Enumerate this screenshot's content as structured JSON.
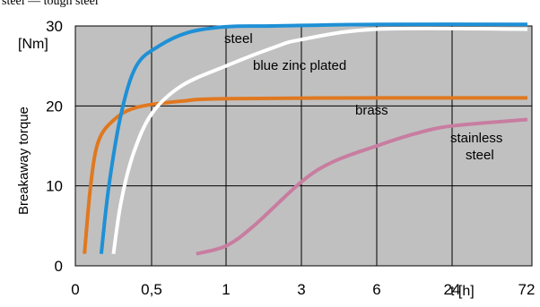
{
  "chart_data": {
    "type": "line",
    "title": "",
    "xlabel": "t [h]",
    "ylabel": "Breakaway  torque",
    "yunit": "[Nm]",
    "top_label": "steel  — tough steel",
    "x_tick_labels": [
      "0",
      "0,5",
      "1",
      "3",
      "6",
      "24",
      "72"
    ],
    "y_tick_labels": [
      "0",
      "10",
      "20",
      "30"
    ],
    "ylim": [
      0,
      30
    ],
    "grid": true,
    "plot_background": "#c0c0c0",
    "series": [
      {
        "name": "steel",
        "color": "#1e90d6",
        "points": [
          [
            0.17,
            1.5
          ],
          [
            0.22,
            10
          ],
          [
            0.3,
            19
          ],
          [
            0.4,
            25
          ],
          [
            0.55,
            27.5
          ],
          [
            0.75,
            29.2
          ],
          [
            1,
            29.9
          ],
          [
            2,
            30
          ],
          [
            6,
            30.2
          ],
          [
            72,
            30.2
          ]
        ]
      },
      {
        "name": "blue zinc plated",
        "color": "#ffffff",
        "points": [
          [
            0.25,
            1.5
          ],
          [
            0.3,
            8
          ],
          [
            0.38,
            14
          ],
          [
            0.5,
            19
          ],
          [
            0.7,
            22.5
          ],
          [
            1,
            25
          ],
          [
            2,
            27.3
          ],
          [
            3,
            28.3
          ],
          [
            6,
            29.6
          ],
          [
            72,
            29.6
          ]
        ]
      },
      {
        "name": "brass",
        "color": "#e07820",
        "points": [
          [
            0.06,
            1.5
          ],
          [
            0.1,
            10
          ],
          [
            0.15,
            15.5
          ],
          [
            0.25,
            18.2
          ],
          [
            0.4,
            19.8
          ],
          [
            0.7,
            20.6
          ],
          [
            1,
            20.9
          ],
          [
            6,
            21
          ],
          [
            72,
            21
          ]
        ]
      },
      {
        "name": "stainless steel",
        "color": "#c87da0",
        "points": [
          [
            0.8,
            1.5
          ],
          [
            1,
            2.5
          ],
          [
            1.5,
            5
          ],
          [
            3,
            10.5
          ],
          [
            4,
            13
          ],
          [
            6,
            15
          ],
          [
            12,
            16.5
          ],
          [
            24,
            17.5
          ],
          [
            72,
            18.3
          ]
        ]
      }
    ],
    "annotations": [
      "steel",
      "blue zinc plated",
      "brass",
      "stainless",
      "steel"
    ]
  }
}
